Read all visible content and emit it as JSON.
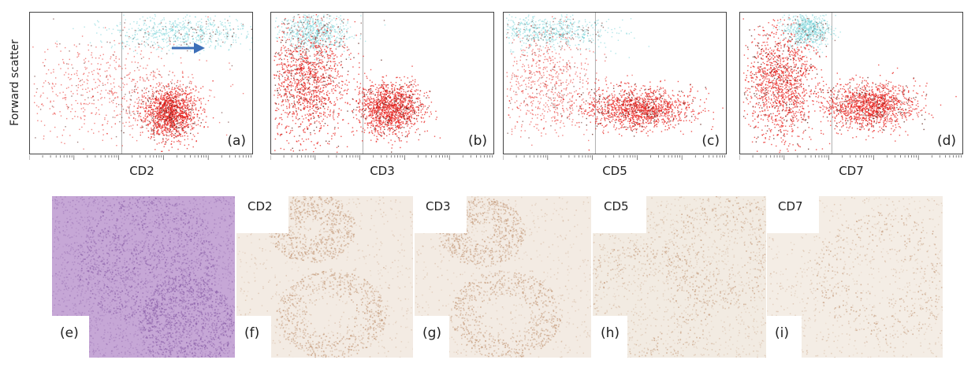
{
  "figure": {
    "y_axis_label": "Forward scatter"
  },
  "chart_data": [
    {
      "type": "scatter",
      "panel": "(a)",
      "xlabel": "CD2",
      "ylabel": "Forward scatter",
      "x_scale": "log",
      "annotation": "arrow",
      "populations": [
        {
          "color": "#e8201c",
          "center": [
            0.62,
            0.3
          ],
          "spread": [
            0.06,
            0.09
          ],
          "density": "high"
        },
        {
          "color": "#e8201c",
          "center": [
            0.35,
            0.45
          ],
          "spread": [
            0.22,
            0.18
          ],
          "density": "diffuse"
        },
        {
          "color": "#6fcfd5",
          "center": [
            0.68,
            0.86
          ],
          "spread": [
            0.18,
            0.06
          ],
          "density": "diffuse"
        }
      ]
    },
    {
      "type": "scatter",
      "panel": "(b)",
      "xlabel": "CD3",
      "ylabel": "Forward scatter",
      "x_scale": "log",
      "populations": [
        {
          "color": "#e8201c",
          "center": [
            0.53,
            0.33
          ],
          "spread": [
            0.07,
            0.09
          ],
          "density": "high"
        },
        {
          "color": "#e8201c",
          "center": [
            0.16,
            0.52
          ],
          "spread": [
            0.09,
            0.2
          ],
          "density": "high"
        },
        {
          "color": "#6fcfd5",
          "center": [
            0.2,
            0.86
          ],
          "spread": [
            0.08,
            0.07
          ],
          "density": "diffuse"
        }
      ]
    },
    {
      "type": "scatter",
      "panel": "(c)",
      "xlabel": "CD5",
      "ylabel": "Forward scatter",
      "x_scale": "log",
      "populations": [
        {
          "color": "#e8201c",
          "center": [
            0.6,
            0.33
          ],
          "spread": [
            0.12,
            0.07
          ],
          "density": "high"
        },
        {
          "color": "#e8201c",
          "center": [
            0.18,
            0.5
          ],
          "spread": [
            0.11,
            0.19
          ],
          "density": "diffuse"
        },
        {
          "color": "#6fcfd5",
          "center": [
            0.2,
            0.87
          ],
          "spread": [
            0.14,
            0.06
          ],
          "density": "diffuse"
        }
      ]
    },
    {
      "type": "scatter",
      "panel": "(d)",
      "xlabel": "CD7",
      "ylabel": "Forward scatter",
      "x_scale": "log",
      "populations": [
        {
          "color": "#e8201c",
          "center": [
            0.58,
            0.35
          ],
          "spread": [
            0.1,
            0.08
          ],
          "density": "high"
        },
        {
          "color": "#e8201c",
          "center": [
            0.18,
            0.5
          ],
          "spread": [
            0.08,
            0.2
          ],
          "density": "high"
        },
        {
          "color": "#6fcfd5",
          "center": [
            0.3,
            0.88
          ],
          "spread": [
            0.05,
            0.06
          ],
          "density": "diffuse"
        }
      ]
    }
  ],
  "micrographs": [
    {
      "letter": "(e)",
      "marker": "",
      "stain": "H&E"
    },
    {
      "letter": "(f)",
      "marker": "CD2",
      "stain": "IHC"
    },
    {
      "letter": "(g)",
      "marker": "CD3",
      "stain": "IHC"
    },
    {
      "letter": "(h)",
      "marker": "CD5",
      "stain": "IHC"
    },
    {
      "letter": "(i)",
      "marker": "CD7",
      "stain": "IHC"
    }
  ],
  "colors": {
    "red_events": "#e8201c",
    "cyan_events": "#6fcfd5",
    "arrow": "#3d6fb8",
    "he_stain": "#b38ac3",
    "dab_stain": "#c49a7a"
  }
}
